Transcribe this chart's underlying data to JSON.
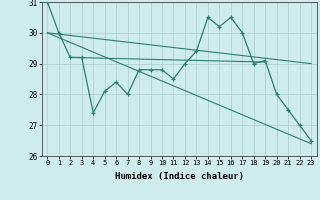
{
  "xlabel": "Humidex (Indice chaleur)",
  "x": [
    0,
    1,
    2,
    3,
    4,
    5,
    6,
    7,
    8,
    9,
    10,
    11,
    12,
    13,
    14,
    15,
    16,
    17,
    18,
    19,
    20,
    21,
    22,
    23
  ],
  "line1": [
    31.0,
    30.0,
    29.2,
    29.2,
    27.4,
    28.1,
    28.4,
    28.0,
    28.8,
    28.8,
    28.8,
    28.5,
    29.0,
    29.4,
    30.5,
    30.2,
    30.5,
    30.0,
    29.0,
    29.1,
    28.0,
    27.5,
    27.0,
    26.5
  ],
  "line2": {
    "x": [
      0,
      23
    ],
    "y": [
      30.0,
      29.0
    ]
  },
  "line3": {
    "x": [
      0,
      23
    ],
    "y": [
      30.0,
      26.4
    ]
  },
  "line4": {
    "x": [
      2,
      19
    ],
    "y": [
      29.2,
      29.05
    ]
  },
  "ylim": [
    26,
    31
  ],
  "yticks": [
    26,
    27,
    28,
    29,
    30,
    31
  ],
  "xticks": [
    0,
    1,
    2,
    3,
    4,
    5,
    6,
    7,
    8,
    9,
    10,
    11,
    12,
    13,
    14,
    15,
    16,
    17,
    18,
    19,
    20,
    21,
    22,
    23
  ],
  "line_color": "#2e7d6e",
  "bg_color": "#ceecea",
  "grid_color": "#aaccc8"
}
